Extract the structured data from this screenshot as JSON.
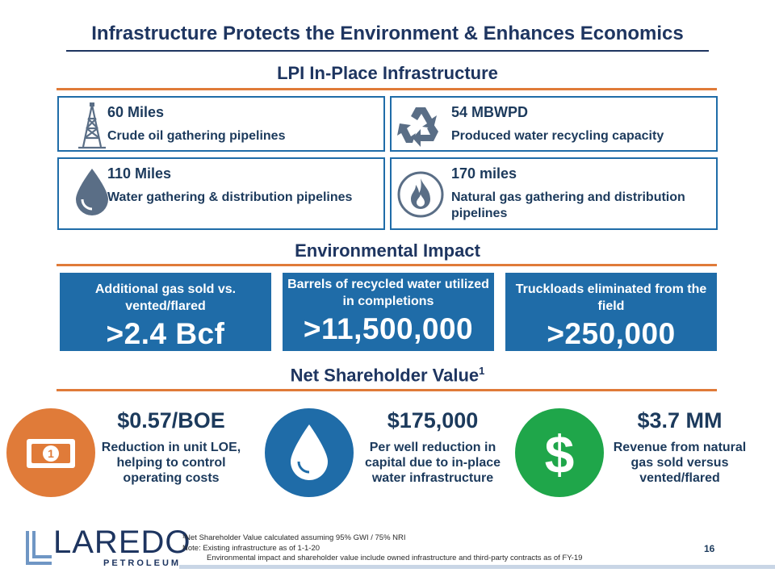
{
  "title": "Infrastructure Protects the Environment & Enhances Economics",
  "sections": {
    "infrastructure": "LPI In-Place Infrastructure",
    "environmental": "Environmental Impact",
    "shareholder": "Net Shareholder Value",
    "shareholder_sup": "1"
  },
  "infrastructure": [
    {
      "value": "60 Miles",
      "label": "Crude oil gathering pipelines",
      "icon": "oil-derrick-icon"
    },
    {
      "value": "54 MBWPD",
      "label": "Produced water recycling capacity",
      "icon": "recycle-icon"
    },
    {
      "value": "110 Miles",
      "label": "Water gathering & distribution pipelines",
      "icon": "water-drop-icon"
    },
    {
      "value": "170 miles",
      "label": "Natural gas gathering and distribution pipelines",
      "icon": "flame-icon"
    }
  ],
  "environmental": [
    {
      "label": "Additional gas sold vs. vented/flared",
      "value": ">2.4 Bcf"
    },
    {
      "label": "Barrels of recycled water utilized in completions",
      "value": ">11,500,000"
    },
    {
      "label": "Truckloads eliminated from the field",
      "value": ">250,000"
    }
  ],
  "shareholder": [
    {
      "value": "$0.57/BOE",
      "label": "Reduction in unit LOE, helping to control operating costs",
      "icon": "banknote-icon",
      "color": "#e07b39"
    },
    {
      "value": "$175,000",
      "label": "Per well reduction in capital due to in-place water infrastructure",
      "icon": "water-drop-icon",
      "color": "#1f6ca8"
    },
    {
      "value": "$3.7 MM",
      "label": "Revenue from natural gas sold versus vented/flared",
      "icon": "dollar-icon",
      "color": "#1fa64a"
    }
  ],
  "footnotes": {
    "line1": "¹Net Shareholder Value calculated assuming 95% GWI / 75% NRI",
    "line2": "Note: Existing infrastructure as of 1-1-20",
    "line3": "Environmental impact and shareholder value include owned infrastructure and third-party contracts as of FY-19"
  },
  "page_number": "16",
  "logo": {
    "name": "LAREDO",
    "sub": "PETROLEUM"
  },
  "colors": {
    "navy": "#1e3560",
    "blue": "#1f6ca8",
    "orange": "#e07b39",
    "green": "#1fa64a"
  }
}
